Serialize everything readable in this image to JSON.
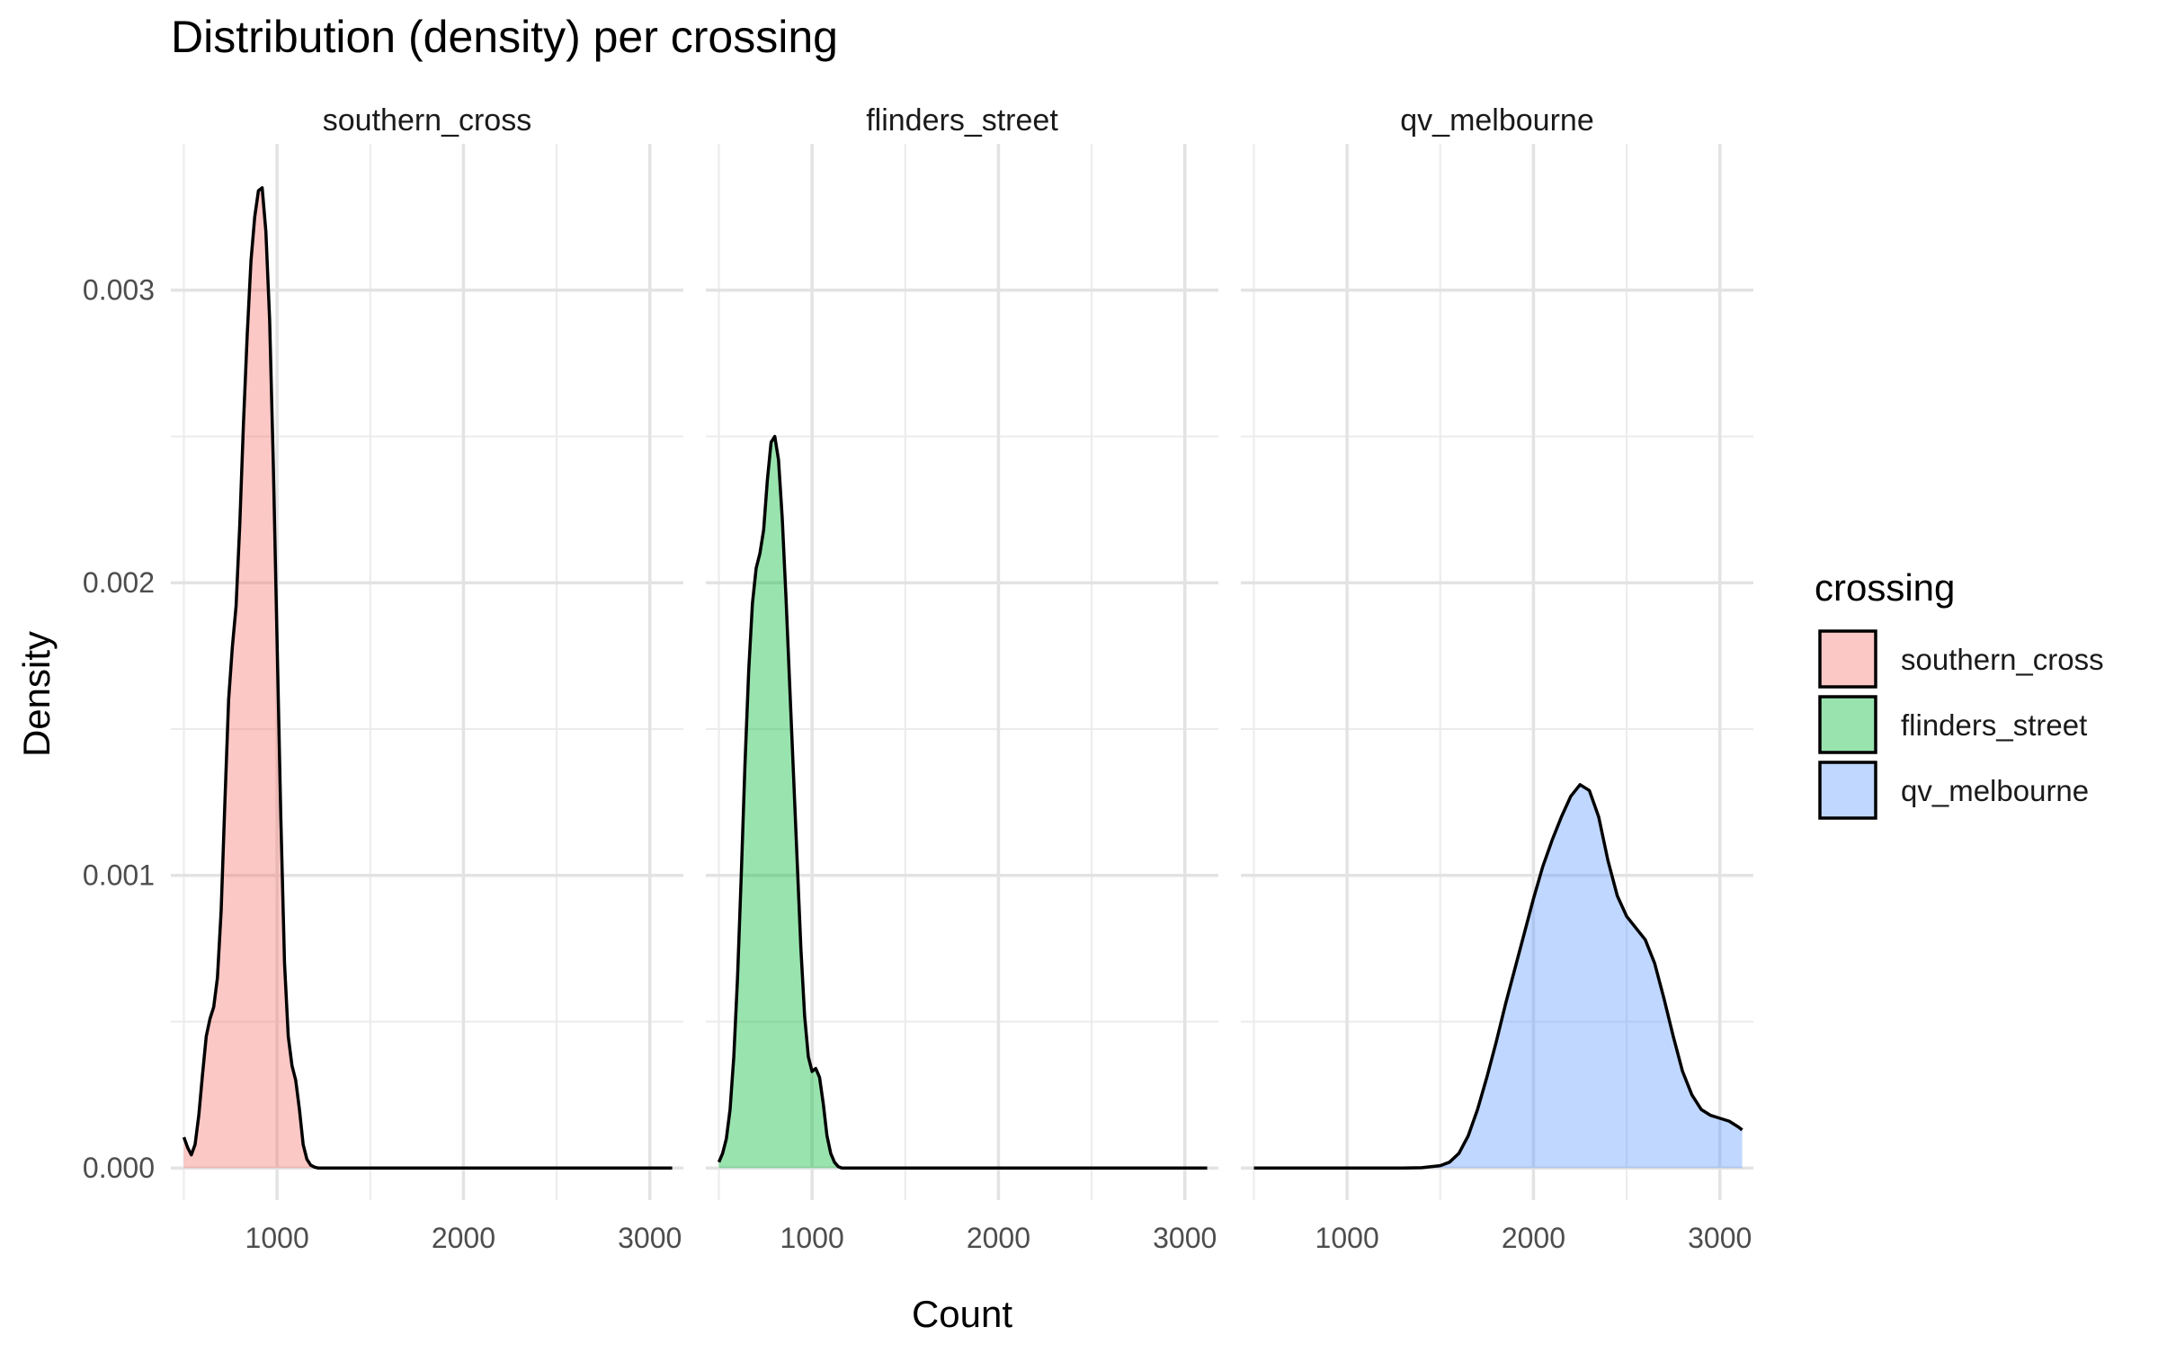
{
  "title": "Distribution (density) per crossing",
  "xlabel": "Count",
  "ylabel": "Density",
  "legend": {
    "title": "crossing",
    "position": "right"
  },
  "chart_data": {
    "type": "area",
    "title": "Distribution (density) per crossing",
    "xlabel": "Count",
    "ylabel": "Density",
    "xlim": [
      430,
      3180
    ],
    "ylim": [
      -0.00011,
      0.0035
    ],
    "xticks": [
      1000,
      2000,
      3000
    ],
    "yticks": [
      0.0,
      0.001,
      0.002,
      0.003
    ],
    "ytick_labels": [
      "0.000",
      "0.001",
      "0.002",
      "0.003"
    ],
    "grid": true,
    "legend_position": "right",
    "panels": [
      {
        "name": "southern_cross",
        "color": "#F8766D",
        "x": [
          500,
          520,
          540,
          560,
          580,
          600,
          620,
          640,
          660,
          680,
          700,
          720,
          740,
          760,
          780,
          800,
          820,
          840,
          860,
          880,
          900,
          920,
          940,
          960,
          980,
          1000,
          1020,
          1040,
          1060,
          1080,
          1100,
          1120,
          1140,
          1160,
          1180,
          1200,
          1220,
          1240,
          1260,
          1280,
          1300,
          1320,
          1340,
          1360,
          1400,
          1600,
          1800,
          2000,
          2200,
          2400,
          2600,
          2800,
          3000,
          3120
        ],
        "y": [
          0.000105,
          7e-05,
          4.5e-05,
          8e-05,
          0.00018,
          0.00032,
          0.00045,
          0.00051,
          0.00055,
          0.00065,
          0.00088,
          0.00125,
          0.0016,
          0.00178,
          0.00192,
          0.0022,
          0.00255,
          0.00285,
          0.0031,
          0.00325,
          0.00334,
          0.00335,
          0.0032,
          0.0029,
          0.0024,
          0.0018,
          0.0012,
          0.0007,
          0.00045,
          0.00035,
          0.0003,
          0.0002,
          8e-05,
          3e-05,
          1e-05,
          3e-06,
          0,
          0,
          0,
          0,
          0,
          0,
          0,
          0,
          0,
          0,
          0,
          0,
          0,
          0,
          0,
          0,
          0,
          0
        ]
      },
      {
        "name": "flinders_street",
        "color": "#00BA38",
        "x": [
          500,
          520,
          540,
          560,
          580,
          600,
          620,
          640,
          660,
          680,
          700,
          720,
          740,
          760,
          780,
          800,
          820,
          840,
          860,
          880,
          900,
          920,
          940,
          960,
          980,
          1000,
          1020,
          1040,
          1060,
          1080,
          1100,
          1120,
          1140,
          1160,
          1180,
          1200,
          1220,
          1240,
          1260,
          1280,
          1300,
          1320,
          1340,
          1360,
          1400,
          1500,
          1700,
          1900,
          2100,
          2300,
          2500,
          2700,
          2900,
          3120
        ],
        "y": [
          2e-05,
          5e-05,
          0.0001,
          0.0002,
          0.00038,
          0.00065,
          0.001,
          0.00138,
          0.0017,
          0.00193,
          0.00205,
          0.0021,
          0.00218,
          0.00235,
          0.00248,
          0.0025,
          0.00242,
          0.00222,
          0.00195,
          0.00165,
          0.00135,
          0.00105,
          0.00075,
          0.00052,
          0.00038,
          0.00033,
          0.00034,
          0.00031,
          0.00022,
          0.00011,
          5e-05,
          2e-05,
          5e-06,
          0,
          0,
          0,
          0,
          0,
          0,
          0,
          0,
          0,
          0,
          0,
          0,
          0,
          0,
          0,
          0,
          0,
          0,
          0,
          0,
          0
        ]
      },
      {
        "name": "qv_melbourne",
        "color": "#619CFF",
        "x": [
          500,
          800,
          1100,
          1300,
          1400,
          1500,
          1550,
          1600,
          1650,
          1700,
          1750,
          1800,
          1850,
          1900,
          1950,
          2000,
          2050,
          2100,
          2150,
          2200,
          2250,
          2300,
          2350,
          2400,
          2450,
          2500,
          2550,
          2600,
          2650,
          2700,
          2750,
          2800,
          2850,
          2900,
          2950,
          3000,
          3050,
          3100,
          3120
        ],
        "y": [
          0,
          0,
          0,
          0,
          1e-06,
          8e-06,
          2e-05,
          5e-05,
          0.00011,
          0.0002,
          0.00031,
          0.00043,
          0.00056,
          0.00068,
          0.0008,
          0.00092,
          0.00103,
          0.00112,
          0.0012,
          0.00127,
          0.00131,
          0.00129,
          0.0012,
          0.00105,
          0.00093,
          0.00086,
          0.00082,
          0.00078,
          0.0007,
          0.00058,
          0.00045,
          0.00033,
          0.00025,
          0.0002,
          0.00018,
          0.00017,
          0.00016,
          0.00014,
          0.00013
        ]
      }
    ]
  }
}
